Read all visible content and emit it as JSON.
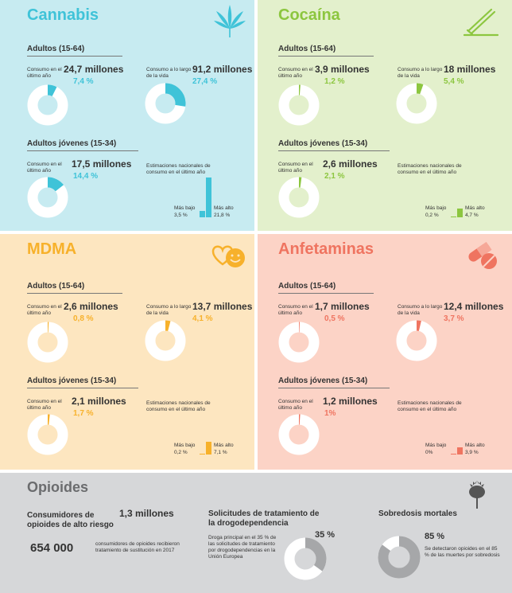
{
  "cannabis": {
    "title": "Cannabis",
    "accent": "#3fc3d8",
    "bg": "#c7ebf1",
    "adults_heading": "Adultos (15-64)",
    "last_year_label": "Consumo en el último año",
    "last_year_value": "24,7 millones",
    "last_year_pct": "7,4 %",
    "last_year_fraction": 0.074,
    "lifetime_label": "Consumo a lo largo de la vida",
    "lifetime_value": "91,2 millones",
    "lifetime_pct": "27,4 %",
    "lifetime_fraction": 0.274,
    "young_heading": "Adultos jóvenes (15-34)",
    "young_label": "Consumo en el último año",
    "young_value": "17,5 millones",
    "young_pct": "14,4 %",
    "young_fraction": 0.144,
    "national_label": "Estimaciones nacionales de consumo en el último año",
    "low_label": "Más bajo",
    "low_value": "3,5 %",
    "low_fraction": 0.035,
    "high_label": "Más alto",
    "high_value": "21,8 %",
    "high_fraction": 0.218
  },
  "cocaina": {
    "title": "Cocaína",
    "accent": "#8cc63f",
    "bg": "#e3f0cc",
    "adults_heading": "Adultos (15-64)",
    "last_year_label": "Consumo en el último año",
    "last_year_value": "3,9 millones",
    "last_year_pct": "1,2 %",
    "last_year_fraction": 0.012,
    "lifetime_label": "Consumo a lo largo de la vida",
    "lifetime_value": "18 millones",
    "lifetime_pct": "5,4 %",
    "lifetime_fraction": 0.054,
    "young_heading": "Adultos jóvenes (15-34)",
    "young_label": "Consumo en el último año",
    "young_value": "2,6 millones",
    "young_pct": "2,1 %",
    "young_fraction": 0.021,
    "national_label": "Estimaciones nacionales de consumo en el último año",
    "low_label": "Más bajo",
    "low_value": "0,2 %",
    "low_fraction": 0.002,
    "high_label": "Más alto",
    "high_value": "4,7 %",
    "high_fraction": 0.047
  },
  "mdma": {
    "title": "MDMA",
    "accent": "#f7b12b",
    "bg": "#fde6c0",
    "adults_heading": "Adultos (15-64)",
    "last_year_label": "Consumo en el último año",
    "last_year_value": "2,6 millones",
    "last_year_pct": "0,8 %",
    "last_year_fraction": 0.008,
    "lifetime_label": "Consumo a lo largo de la vida",
    "lifetime_value": "13,7 millones",
    "lifetime_pct": "4,1 %",
    "lifetime_fraction": 0.041,
    "young_heading": "Adultos jóvenes (15-34)",
    "young_label": "Consumo en el último año",
    "young_value": "2,1 millones",
    "young_pct": "1,7 %",
    "young_fraction": 0.017,
    "national_label": "Estimaciones nacionales de consumo en el último año",
    "low_label": "Más bajo",
    "low_value": "0,2 %",
    "low_fraction": 0.002,
    "high_label": "Más alto",
    "high_value": "7,1 %",
    "high_fraction": 0.071
  },
  "anfetaminas": {
    "title": "Anfetaminas",
    "accent": "#ef7460",
    "bg": "#fcd3c6",
    "adults_heading": "Adultos (15-64)",
    "last_year_label": "Consumo en el último año",
    "last_year_value": "1,7 millones",
    "last_year_pct": "0,5 %",
    "last_year_fraction": 0.005,
    "lifetime_label": "Consumo a lo largo de la vida",
    "lifetime_value": "12,4 millones",
    "lifetime_pct": "3,7 %",
    "lifetime_fraction": 0.037,
    "young_heading": "Adultos jóvenes (15-34)",
    "young_label": "Consumo en el último año",
    "young_value": "1,2 millones",
    "young_pct": "1%",
    "young_fraction": 0.01,
    "national_label": "Estimaciones nacionales de consumo en el último año",
    "low_label": "Más bajo",
    "low_value": "0%",
    "low_fraction": 0.0,
    "high_label": "Más alto",
    "high_value": "3,9 %",
    "high_fraction": 0.039
  },
  "opioides": {
    "title": "Opioides",
    "bg": "#d6d7d9",
    "accent": "#a6a7a9",
    "consumers_heading": "Consumidores de opioides de alto riesgo",
    "consumers_value": "1,3 millones",
    "treatment_value": "654 000",
    "treatment_label": "consumidores de opioides recibieron tratamiento de sustitución en 2017",
    "requests_heading": "Solicitudes de tratamiento de la drogodependencia",
    "requests_text": "Droga principal en el 35 % de las solicitudes de tratamiento por drogodependencias en la Unión Europea",
    "requests_pct": "35 %",
    "requests_fraction": 0.35,
    "overdose_heading": "Sobredosis mortales",
    "overdose_pct": "85 %",
    "overdose_text": "Se detectaron opioides en el 85 % de las muertes por sobredosis",
    "overdose_fraction": 0.85
  }
}
